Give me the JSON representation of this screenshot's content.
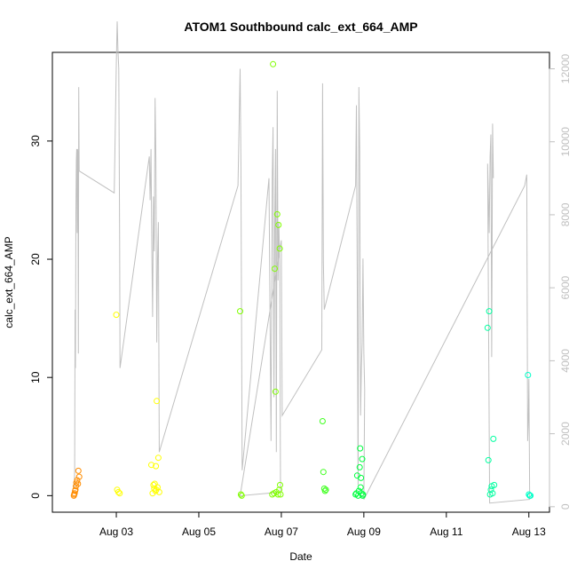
{
  "chart_data": {
    "type": "scatter",
    "title": "ATOM1 Southbound calc_ext_664_AMP",
    "xlabel": "Date",
    "ylabel": "calc_ext_664_AMP",
    "x_ticks": [
      {
        "label": "Aug 03",
        "day": 3
      },
      {
        "label": "Aug 05",
        "day": 5
      },
      {
        "label": "Aug 07",
        "day": 7
      },
      {
        "label": "Aug 09",
        "day": 9
      },
      {
        "label": "Aug 11",
        "day": 11
      },
      {
        "label": "Aug 13",
        "day": 13
      }
    ],
    "xlim": [
      1.45,
      13.5
    ],
    "ylim": [
      -1.4,
      37.5
    ],
    "y_ticks": [
      0,
      10,
      20,
      30
    ],
    "y2lim": [
      -150,
      12450
    ],
    "y2_ticks": [
      0,
      2000,
      4000,
      6000,
      8000,
      10000,
      12000
    ],
    "y2_color": "#c0c0c0",
    "grid": false,
    "series": [
      {
        "color": "#ff8c00",
        "points": [
          [
            1.97,
            0.0
          ],
          [
            1.98,
            0.1
          ],
          [
            1.99,
            0.2
          ],
          [
            2.0,
            0.4
          ],
          [
            2.01,
            0.5
          ],
          [
            2.02,
            0.8
          ],
          [
            2.03,
            1.1
          ],
          [
            2.05,
            1.3
          ],
          [
            2.07,
            1.0
          ],
          [
            2.08,
            2.1
          ],
          [
            2.1,
            1.6
          ]
        ]
      },
      {
        "color": "#ffff00",
        "points": [
          [
            3.0,
            15.3
          ],
          [
            3.02,
            0.5
          ],
          [
            3.05,
            0.3
          ],
          [
            3.08,
            0.2
          ],
          [
            3.85,
            2.6
          ],
          [
            3.88,
            0.2
          ],
          [
            3.9,
            0.9
          ],
          [
            3.92,
            0.6
          ],
          [
            3.93,
            1.0
          ],
          [
            3.95,
            0.4
          ],
          [
            3.96,
            2.5
          ],
          [
            3.97,
            0.5
          ],
          [
            3.98,
            8.0
          ],
          [
            4.0,
            0.7
          ],
          [
            4.02,
            3.2
          ],
          [
            4.04,
            0.3
          ]
        ]
      },
      {
        "color": "#80ff00",
        "points": [
          [
            6.0,
            15.6
          ],
          [
            6.02,
            0.1
          ],
          [
            6.04,
            0.0
          ],
          [
            6.8,
            36.5
          ],
          [
            6.78,
            0.1
          ],
          [
            6.82,
            0.2
          ],
          [
            6.84,
            19.2
          ],
          [
            6.86,
            8.8
          ],
          [
            6.88,
            0.3
          ],
          [
            6.9,
            23.8
          ],
          [
            6.92,
            0.1
          ],
          [
            6.93,
            22.9
          ],
          [
            6.95,
            0.5
          ],
          [
            6.96,
            20.9
          ],
          [
            6.97,
            0.9
          ],
          [
            6.98,
            0.1
          ]
        ]
      },
      {
        "color": "#40ff20",
        "points": [
          [
            8.0,
            6.3
          ],
          [
            8.02,
            2.0
          ],
          [
            8.04,
            0.6
          ],
          [
            8.06,
            0.4
          ],
          [
            8.08,
            0.5
          ]
        ]
      },
      {
        "color": "#00ff40",
        "points": [
          [
            8.8,
            0.1
          ],
          [
            8.82,
            0.2
          ],
          [
            8.84,
            1.7
          ],
          [
            8.86,
            0.0
          ],
          [
            8.88,
            0.4
          ],
          [
            8.9,
            2.4
          ],
          [
            8.91,
            4.0
          ],
          [
            8.92,
            0.7
          ],
          [
            8.93,
            1.5
          ],
          [
            8.94,
            0.2
          ],
          [
            8.96,
            3.1
          ],
          [
            8.97,
            0.0
          ],
          [
            8.98,
            0.1
          ]
        ]
      },
      {
        "color": "#00ffa0",
        "points": [
          [
            12.0,
            14.2
          ],
          [
            12.02,
            3.0
          ],
          [
            12.04,
            15.6
          ],
          [
            12.06,
            0.1
          ],
          [
            12.08,
            0.5
          ],
          [
            12.1,
            0.8
          ],
          [
            12.12,
            0.2
          ],
          [
            12.14,
            4.8
          ],
          [
            12.16,
            0.9
          ]
        ]
      },
      {
        "color": "#00ffc8",
        "points": [
          [
            12.98,
            10.2
          ],
          [
            13.0,
            0.1
          ],
          [
            13.02,
            0.0
          ],
          [
            13.04,
            0.0
          ]
        ]
      }
    ],
    "secondary_line": {
      "color": "#c0c0c0",
      "points": [
        [
          1.98,
          500
        ],
        [
          1.99,
          1000
        ],
        [
          2.0,
          5400
        ],
        [
          2.01,
          3800
        ],
        [
          2.02,
          8000
        ],
        [
          2.03,
          9500
        ],
        [
          2.04,
          9800
        ],
        [
          2.05,
          7500
        ],
        [
          2.06,
          9800
        ],
        [
          2.07,
          9700
        ],
        [
          2.08,
          4200
        ],
        [
          2.09,
          11500
        ],
        [
          2.1,
          9200
        ],
        [
          2.95,
          8600
        ],
        [
          3.0,
          12100
        ],
        [
          3.02,
          13300
        ],
        [
          3.04,
          12500
        ],
        [
          3.06,
          12000
        ],
        [
          3.08,
          7200
        ],
        [
          3.09,
          3800
        ],
        [
          3.8,
          9600
        ],
        [
          3.82,
          8400
        ],
        [
          3.84,
          9800
        ],
        [
          3.86,
          7200
        ],
        [
          3.88,
          5200
        ],
        [
          3.9,
          8500
        ],
        [
          3.92,
          7000
        ],
        [
          3.94,
          11200
        ],
        [
          3.96,
          9500
        ],
        [
          3.98,
          4500
        ],
        [
          4.0,
          6800
        ],
        [
          4.02,
          7800
        ],
        [
          4.04,
          1500
        ],
        [
          5.95,
          8800
        ],
        [
          6.0,
          12000
        ],
        [
          6.02,
          9400
        ],
        [
          6.05,
          1000
        ],
        [
          6.7,
          9000
        ],
        [
          6.75,
          1800
        ],
        [
          6.78,
          9000
        ],
        [
          6.8,
          10400
        ],
        [
          6.82,
          3000
        ],
        [
          6.84,
          7600
        ],
        [
          6.86,
          9800
        ],
        [
          6.88,
          1500
        ],
        [
          6.9,
          11400
        ],
        [
          6.92,
          6200
        ],
        [
          6.94,
          7800
        ],
        [
          6.96,
          6600
        ],
        [
          6.98,
          400
        ],
        [
          6.0,
          300
        ],
        [
          7.0,
          7300
        ],
        [
          7.02,
          2500
        ],
        [
          7.98,
          4300
        ],
        [
          8.0,
          11600
        ],
        [
          8.02,
          6700
        ],
        [
          8.04,
          5400
        ],
        [
          8.8,
          8800
        ],
        [
          8.82,
          11000
        ],
        [
          8.84,
          6500
        ],
        [
          8.86,
          600
        ],
        [
          8.88,
          11500
        ],
        [
          8.9,
          9800
        ],
        [
          8.92,
          2500
        ],
        [
          8.94,
          3800
        ],
        [
          8.96,
          4500
        ],
        [
          8.98,
          6800
        ],
        [
          9.0,
          4200
        ],
        [
          9.02,
          3200
        ],
        [
          9.0,
          200
        ],
        [
          12.9,
          8800
        ],
        [
          12.95,
          9100
        ],
        [
          12.97,
          1800
        ],
        [
          12.99,
          2500
        ],
        [
          13.0,
          3500
        ],
        [
          13.02,
          200
        ],
        [
          12.05,
          100
        ],
        [
          12.0,
          9400
        ],
        [
          12.02,
          8500
        ],
        [
          12.04,
          7500
        ],
        [
          12.06,
          9600
        ],
        [
          12.08,
          10200
        ],
        [
          12.1,
          4100
        ],
        [
          12.12,
          10500
        ],
        [
          12.14,
          9000
        ]
      ]
    }
  }
}
